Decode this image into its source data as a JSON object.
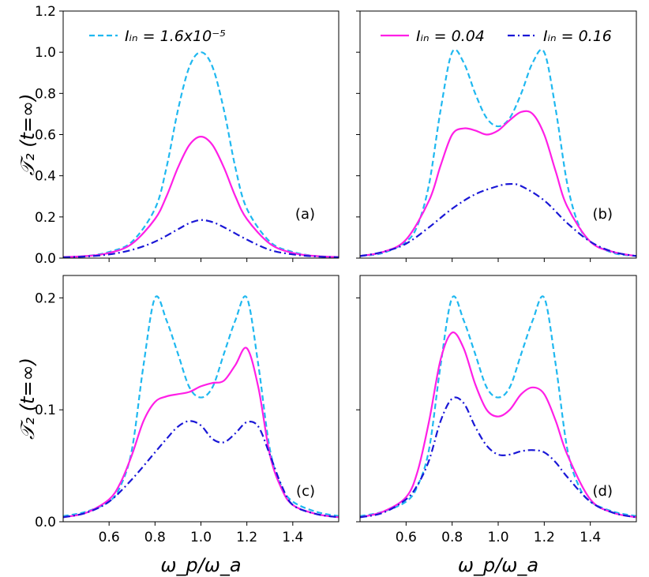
{
  "chart_data": [
    {
      "panel": "(a)",
      "type": "line",
      "title": "",
      "xlabel": "",
      "ylabel": "𝒯₂ (t=∞)",
      "xlim": [
        0.4,
        1.6
      ],
      "ylim": [
        0.0,
        1.2
      ],
      "xticks": [
        0.6,
        0.8,
        1.0,
        1.2,
        1.4
      ],
      "xtick_labels": [
        "",
        "",
        "",
        "",
        ""
      ],
      "yticks": [
        0.0,
        0.2,
        0.4,
        0.6,
        0.8,
        1.0,
        1.2
      ],
      "ytick_labels": [
        "0.0",
        "0.2",
        "0.4",
        "0.6",
        "0.8",
        "1.0",
        "1.2"
      ],
      "legend": {
        "placement": "top-left",
        "entries": [
          "I_in=1.6x10⁻⁵"
        ],
        "text": "Iᵢₙ = 1.6x10⁻⁵"
      },
      "series": [
        {
          "name": "I_in=1.6x10^-5",
          "color": "#1fb8f0",
          "style": "dashed",
          "x": [
            0.4,
            0.5,
            0.6,
            0.7,
            0.8,
            0.85,
            0.9,
            0.95,
            1.0,
            1.05,
            1.1,
            1.15,
            1.2,
            1.3,
            1.4,
            1.5,
            1.6
          ],
          "y": [
            0.005,
            0.01,
            0.03,
            0.08,
            0.24,
            0.44,
            0.72,
            0.93,
            1.0,
            0.93,
            0.72,
            0.44,
            0.24,
            0.08,
            0.03,
            0.01,
            0.005
          ]
        },
        {
          "name": "I_in=0.04",
          "color": "#ff1fe6",
          "style": "solid",
          "x": [
            0.4,
            0.5,
            0.6,
            0.7,
            0.8,
            0.85,
            0.9,
            0.95,
            1.0,
            1.05,
            1.1,
            1.15,
            1.2,
            1.3,
            1.4,
            1.5,
            1.6
          ],
          "y": [
            0.005,
            0.01,
            0.025,
            0.07,
            0.19,
            0.3,
            0.44,
            0.55,
            0.59,
            0.55,
            0.44,
            0.3,
            0.19,
            0.07,
            0.025,
            0.01,
            0.005
          ]
        },
        {
          "name": "I_in=0.16",
          "color": "#1a17d6",
          "style": "dashdot",
          "x": [
            0.4,
            0.5,
            0.6,
            0.7,
            0.8,
            0.9,
            0.95,
            1.0,
            1.05,
            1.1,
            1.2,
            1.3,
            1.4,
            1.5,
            1.6
          ],
          "y": [
            0.004,
            0.008,
            0.018,
            0.04,
            0.08,
            0.14,
            0.17,
            0.185,
            0.175,
            0.15,
            0.09,
            0.04,
            0.018,
            0.008,
            0.004
          ]
        }
      ],
      "panel_label": "(a)"
    },
    {
      "panel": "(b)",
      "type": "line",
      "title": "",
      "xlabel": "",
      "ylabel": "",
      "xlim": [
        0.4,
        1.6
      ],
      "ylim": [
        0.0,
        1.2
      ],
      "xticks": [
        0.6,
        0.8,
        1.0,
        1.2,
        1.4
      ],
      "xtick_labels": [
        "",
        "",
        "",
        "",
        ""
      ],
      "yticks": [
        0.0,
        0.2,
        0.4,
        0.6,
        0.8,
        1.0,
        1.2
      ],
      "ytick_labels": [
        "",
        "",
        "",
        "",
        "",
        "",
        ""
      ],
      "legend": {
        "placement": "top",
        "entries": [
          "I_in=0.04",
          "I_in=0.16"
        ],
        "text": [
          "Iᵢₙ = 0.04",
          "Iᵢₙ = 0.16"
        ]
      },
      "series": [
        {
          "name": "I_in=1.6x10^-5",
          "color": "#1fb8f0",
          "style": "dashed",
          "x": [
            0.4,
            0.5,
            0.6,
            0.65,
            0.7,
            0.75,
            0.8,
            0.85,
            0.9,
            0.95,
            1.0,
            1.05,
            1.1,
            1.15,
            1.2,
            1.25,
            1.3,
            1.35,
            1.4,
            1.5,
            1.6
          ],
          "y": [
            0.01,
            0.025,
            0.08,
            0.16,
            0.36,
            0.72,
            1.0,
            0.95,
            0.8,
            0.68,
            0.64,
            0.68,
            0.8,
            0.95,
            1.0,
            0.72,
            0.36,
            0.16,
            0.08,
            0.025,
            0.01
          ]
        },
        {
          "name": "I_in=0.04",
          "color": "#ff1fe6",
          "style": "solid",
          "x": [
            0.4,
            0.5,
            0.6,
            0.7,
            0.75,
            0.8,
            0.85,
            0.9,
            0.95,
            1.0,
            1.05,
            1.1,
            1.15,
            1.2,
            1.25,
            1.3,
            1.4,
            1.5,
            1.6
          ],
          "y": [
            0.01,
            0.03,
            0.09,
            0.28,
            0.45,
            0.6,
            0.63,
            0.62,
            0.6,
            0.62,
            0.67,
            0.71,
            0.7,
            0.6,
            0.42,
            0.25,
            0.08,
            0.03,
            0.01
          ]
        },
        {
          "name": "I_in=0.16",
          "color": "#1a17d6",
          "style": "dashdot",
          "x": [
            0.4,
            0.5,
            0.6,
            0.7,
            0.8,
            0.9,
            1.0,
            1.05,
            1.1,
            1.2,
            1.3,
            1.4,
            1.5,
            1.6
          ],
          "y": [
            0.01,
            0.03,
            0.07,
            0.15,
            0.24,
            0.31,
            0.35,
            0.36,
            0.35,
            0.28,
            0.17,
            0.08,
            0.03,
            0.01
          ]
        }
      ],
      "panel_label": "(b)"
    },
    {
      "panel": "(c)",
      "type": "line",
      "title": "",
      "xlabel": "ω_p/ω_a",
      "ylabel": "𝒯₂ (t=∞)",
      "xlim": [
        0.4,
        1.6
      ],
      "ylim": [
        0.0,
        0.22
      ],
      "xticks": [
        0.6,
        0.8,
        1.0,
        1.2,
        1.4
      ],
      "xtick_labels": [
        "0.6",
        "0.8",
        "1.0",
        "1.2",
        "1.4"
      ],
      "yticks": [
        0.0,
        0.1,
        0.2
      ],
      "ytick_labels": [
        "0.0",
        "0.1",
        "0.2"
      ],
      "series": [
        {
          "name": "I_in=1.6x10^-5",
          "color": "#1fb8f0",
          "style": "dashed",
          "x": [
            0.4,
            0.5,
            0.6,
            0.65,
            0.7,
            0.75,
            0.8,
            0.85,
            0.9,
            0.95,
            1.0,
            1.05,
            1.1,
            1.15,
            1.2,
            1.25,
            1.3,
            1.35,
            1.4,
            1.5,
            1.6
          ],
          "y": [
            0.005,
            0.009,
            0.018,
            0.032,
            0.065,
            0.14,
            0.2,
            0.18,
            0.15,
            0.12,
            0.111,
            0.12,
            0.15,
            0.18,
            0.2,
            0.14,
            0.065,
            0.032,
            0.018,
            0.009,
            0.005
          ]
        },
        {
          "name": "I_in=0.04",
          "color": "#ff1fe6",
          "style": "solid",
          "x": [
            0.4,
            0.5,
            0.6,
            0.65,
            0.7,
            0.75,
            0.8,
            0.85,
            0.9,
            0.95,
            1.0,
            1.05,
            1.1,
            1.15,
            1.2,
            1.25,
            1.3,
            1.35,
            1.4,
            1.5,
            1.6
          ],
          "y": [
            0.004,
            0.008,
            0.02,
            0.035,
            0.06,
            0.09,
            0.107,
            0.112,
            0.114,
            0.116,
            0.121,
            0.124,
            0.126,
            0.14,
            0.155,
            0.12,
            0.06,
            0.03,
            0.015,
            0.007,
            0.004
          ]
        },
        {
          "name": "I_in=0.16",
          "color": "#1a17d6",
          "style": "dashdot",
          "x": [
            0.4,
            0.5,
            0.6,
            0.7,
            0.8,
            0.85,
            0.9,
            0.95,
            1.0,
            1.05,
            1.1,
            1.15,
            1.2,
            1.25,
            1.3,
            1.35,
            1.4,
            1.5,
            1.6
          ],
          "y": [
            0.004,
            0.008,
            0.018,
            0.038,
            0.062,
            0.074,
            0.085,
            0.09,
            0.086,
            0.074,
            0.071,
            0.079,
            0.089,
            0.085,
            0.06,
            0.033,
            0.015,
            0.007,
            0.004
          ]
        }
      ],
      "panel_label": "(c)"
    },
    {
      "panel": "(d)",
      "type": "line",
      "title": "",
      "xlabel": "ω_p/ω_a",
      "ylabel": "",
      "xlim": [
        0.4,
        1.6
      ],
      "ylim": [
        0.0,
        0.22
      ],
      "xticks": [
        0.6,
        0.8,
        1.0,
        1.2,
        1.4
      ],
      "xtick_labels": [
        "0.6",
        "0.8",
        "1.0",
        "1.2",
        "1.4"
      ],
      "yticks": [
        0.0,
        0.1,
        0.2
      ],
      "ytick_labels": [
        "",
        "",
        ""
      ],
      "series": [
        {
          "name": "I_in=1.6x10^-5",
          "color": "#1fb8f0",
          "style": "dashed",
          "x": [
            0.4,
            0.5,
            0.6,
            0.65,
            0.7,
            0.75,
            0.8,
            0.85,
            0.9,
            0.95,
            1.0,
            1.05,
            1.1,
            1.15,
            1.2,
            1.25,
            1.3,
            1.35,
            1.4,
            1.5,
            1.6
          ],
          "y": [
            0.005,
            0.009,
            0.018,
            0.032,
            0.065,
            0.14,
            0.2,
            0.18,
            0.15,
            0.12,
            0.111,
            0.12,
            0.15,
            0.18,
            0.2,
            0.14,
            0.065,
            0.032,
            0.018,
            0.009,
            0.005
          ]
        },
        {
          "name": "I_in=0.04",
          "color": "#ff1fe6",
          "style": "solid",
          "x": [
            0.4,
            0.5,
            0.6,
            0.65,
            0.7,
            0.75,
            0.8,
            0.85,
            0.9,
            0.95,
            1.0,
            1.05,
            1.1,
            1.15,
            1.2,
            1.25,
            1.3,
            1.4,
            1.5,
            1.6
          ],
          "y": [
            0.004,
            0.009,
            0.022,
            0.045,
            0.09,
            0.145,
            0.169,
            0.155,
            0.123,
            0.1,
            0.094,
            0.1,
            0.114,
            0.12,
            0.114,
            0.09,
            0.06,
            0.02,
            0.008,
            0.004
          ]
        },
        {
          "name": "I_in=0.16",
          "color": "#1a17d6",
          "style": "dashdot",
          "x": [
            0.4,
            0.5,
            0.6,
            0.65,
            0.7,
            0.75,
            0.8,
            0.85,
            0.9,
            0.95,
            1.0,
            1.05,
            1.1,
            1.15,
            1.2,
            1.25,
            1.3,
            1.4,
            1.5,
            1.6
          ],
          "y": [
            0.004,
            0.008,
            0.02,
            0.033,
            0.055,
            0.09,
            0.11,
            0.106,
            0.085,
            0.068,
            0.06,
            0.06,
            0.063,
            0.064,
            0.062,
            0.053,
            0.04,
            0.018,
            0.008,
            0.004
          ]
        }
      ],
      "panel_label": "(d)"
    }
  ]
}
